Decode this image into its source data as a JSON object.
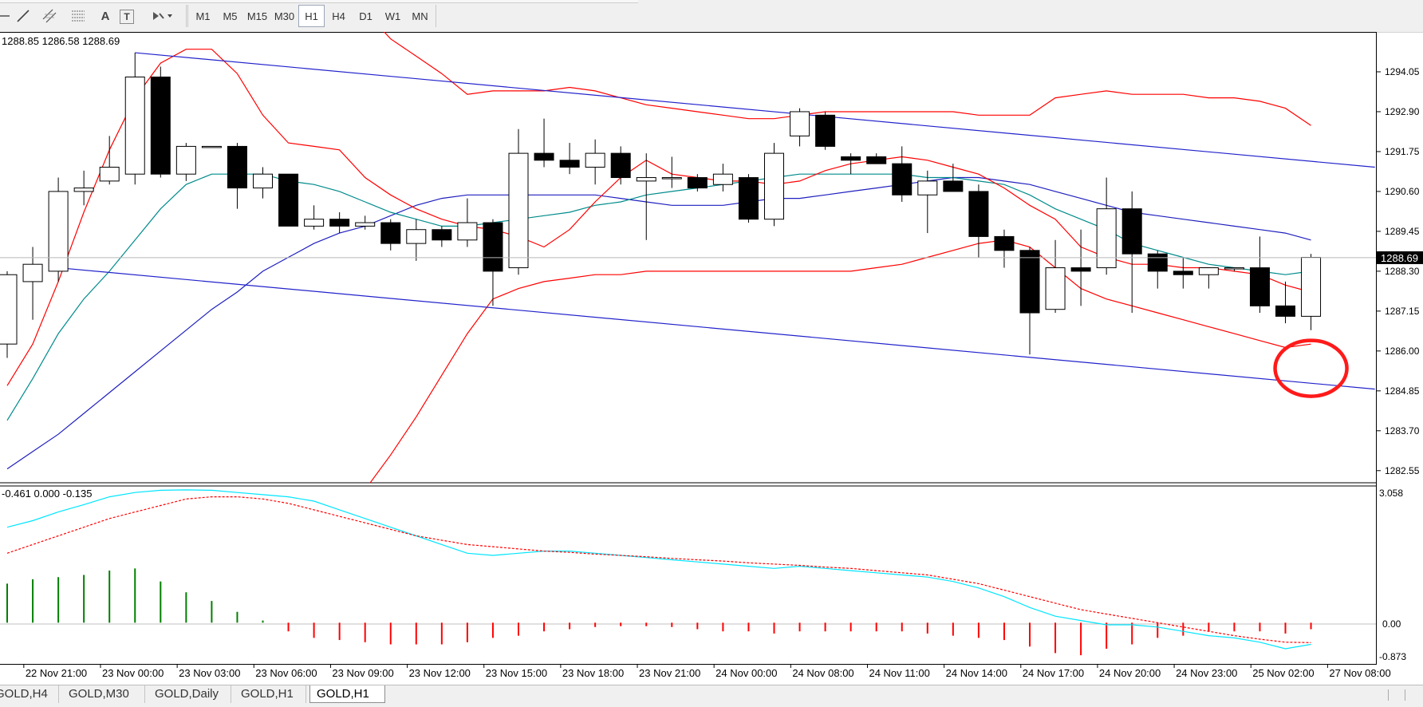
{
  "toolbar": {
    "tools": [
      {
        "name": "cursor-icon"
      },
      {
        "name": "trendline-icon"
      },
      {
        "name": "channel-icon"
      },
      {
        "name": "fibonacci-icon"
      },
      {
        "name": "text-tool-icon",
        "label": "A"
      },
      {
        "name": "text-label-icon",
        "label": "T"
      },
      {
        "name": "shapes-dropdown-icon"
      }
    ],
    "timeframes": [
      "M1",
      "M5",
      "M15",
      "M30",
      "H1",
      "H4",
      "D1",
      "W1",
      "MN"
    ],
    "active_timeframe": "H1"
  },
  "chart": {
    "ohlc_text": "1288.85 1286.58 1288.69",
    "current_price": "1288.69",
    "symbol": "GOLD",
    "timeframe": "H1",
    "annotation": "red circle around latest candle near lower channel line"
  },
  "indicator": {
    "values_text": "-0.461 0.000 -0.135",
    "scale_top": "3.058",
    "scale_zero": "0.00",
    "scale_bottom": "-0.873"
  },
  "chart_data": {
    "type": "candlestick",
    "price_axis": [
      "1294.05",
      "1292.90",
      "1291.75",
      "1290.60",
      "1289.45",
      "1288.30",
      "1287.15",
      "1286.00",
      "1284.85",
      "1283.70",
      "1282.55"
    ],
    "time_axis": [
      "22 Nov 21:00",
      "23 Nov 00:00",
      "23 Nov 03:00",
      "23 Nov 06:00",
      "23 Nov 09:00",
      "23 Nov 12:00",
      "23 Nov 15:00",
      "23 Nov 18:00",
      "23 Nov 21:00",
      "24 Nov 00:00",
      "24 Nov 08:00",
      "24 Nov 11:00",
      "24 Nov 14:00",
      "24 Nov 17:00",
      "24 Nov 20:00",
      "24 Nov 23:00",
      "25 Nov 02:00",
      "27 Nov 08:00"
    ],
    "candles": [
      {
        "o": 1286.2,
        "h": 1288.3,
        "l": 1285.8,
        "c": 1288.2
      },
      {
        "o": 1288.0,
        "h": 1289.0,
        "l": 1286.9,
        "c": 1288.5
      },
      {
        "o": 1288.3,
        "h": 1291.0,
        "l": 1288.0,
        "c": 1290.6
      },
      {
        "o": 1290.6,
        "h": 1291.2,
        "l": 1290.2,
        "c": 1290.7
      },
      {
        "o": 1290.9,
        "h": 1292.2,
        "l": 1290.8,
        "c": 1291.3
      },
      {
        "o": 1291.1,
        "h": 1294.6,
        "l": 1290.8,
        "c": 1293.9
      },
      {
        "o": 1293.9,
        "h": 1294.2,
        "l": 1291.0,
        "c": 1291.1
      },
      {
        "o": 1291.1,
        "h": 1292.0,
        "l": 1290.9,
        "c": 1291.9
      },
      {
        "o": 1291.9,
        "h": 1291.9,
        "l": 1291.9,
        "c": 1291.9
      },
      {
        "o": 1291.9,
        "h": 1292.0,
        "l": 1290.1,
        "c": 1290.7
      },
      {
        "o": 1290.7,
        "h": 1291.3,
        "l": 1290.4,
        "c": 1291.1
      },
      {
        "o": 1291.1,
        "h": 1291.1,
        "l": 1289.6,
        "c": 1289.6
      },
      {
        "o": 1289.6,
        "h": 1290.2,
        "l": 1289.5,
        "c": 1289.8
      },
      {
        "o": 1289.8,
        "h": 1290.0,
        "l": 1289.4,
        "c": 1289.6
      },
      {
        "o": 1289.6,
        "h": 1289.9,
        "l": 1289.5,
        "c": 1289.7
      },
      {
        "o": 1289.7,
        "h": 1289.8,
        "l": 1288.9,
        "c": 1289.1
      },
      {
        "o": 1289.1,
        "h": 1289.8,
        "l": 1288.6,
        "c": 1289.5
      },
      {
        "o": 1289.5,
        "h": 1289.6,
        "l": 1289.0,
        "c": 1289.2
      },
      {
        "o": 1289.2,
        "h": 1290.4,
        "l": 1289.0,
        "c": 1289.7
      },
      {
        "o": 1289.7,
        "h": 1289.8,
        "l": 1287.3,
        "c": 1288.3
      },
      {
        "o": 1288.4,
        "h": 1292.4,
        "l": 1288.2,
        "c": 1291.7
      },
      {
        "o": 1291.7,
        "h": 1292.7,
        "l": 1291.3,
        "c": 1291.5
      },
      {
        "o": 1291.5,
        "h": 1292.0,
        "l": 1291.1,
        "c": 1291.3
      },
      {
        "o": 1291.3,
        "h": 1292.1,
        "l": 1290.8,
        "c": 1291.7
      },
      {
        "o": 1291.7,
        "h": 1291.9,
        "l": 1290.8,
        "c": 1291.0
      },
      {
        "o": 1290.9,
        "h": 1291.7,
        "l": 1289.2,
        "c": 1291.0
      },
      {
        "o": 1291.0,
        "h": 1291.6,
        "l": 1290.7,
        "c": 1291.0
      },
      {
        "o": 1291.0,
        "h": 1291.1,
        "l": 1290.6,
        "c": 1290.7
      },
      {
        "o": 1290.8,
        "h": 1291.4,
        "l": 1290.6,
        "c": 1291.1
      },
      {
        "o": 1291.0,
        "h": 1291.1,
        "l": 1289.7,
        "c": 1289.8
      },
      {
        "o": 1289.8,
        "h": 1292.0,
        "l": 1289.6,
        "c": 1291.7
      },
      {
        "o": 1292.2,
        "h": 1293.0,
        "l": 1291.9,
        "c": 1292.9
      },
      {
        "o": 1292.8,
        "h": 1292.9,
        "l": 1291.8,
        "c": 1291.9
      },
      {
        "o": 1291.6,
        "h": 1291.7,
        "l": 1291.1,
        "c": 1291.5
      },
      {
        "o": 1291.6,
        "h": 1291.7,
        "l": 1291.4,
        "c": 1291.4
      },
      {
        "o": 1291.4,
        "h": 1291.9,
        "l": 1290.3,
        "c": 1290.5
      },
      {
        "o": 1290.5,
        "h": 1291.2,
        "l": 1289.4,
        "c": 1290.9
      },
      {
        "o": 1290.9,
        "h": 1291.4,
        "l": 1290.6,
        "c": 1290.6
      },
      {
        "o": 1290.6,
        "h": 1290.8,
        "l": 1288.7,
        "c": 1289.3
      },
      {
        "o": 1289.3,
        "h": 1289.5,
        "l": 1288.4,
        "c": 1288.9
      },
      {
        "o": 1288.9,
        "h": 1289.0,
        "l": 1285.9,
        "c": 1287.1
      },
      {
        "o": 1287.2,
        "h": 1289.2,
        "l": 1287.1,
        "c": 1288.4
      },
      {
        "o": 1288.4,
        "h": 1289.5,
        "l": 1287.3,
        "c": 1288.3
      },
      {
        "o": 1288.4,
        "h": 1291.0,
        "l": 1288.2,
        "c": 1290.1
      },
      {
        "o": 1290.1,
        "h": 1290.6,
        "l": 1287.1,
        "c": 1288.8
      },
      {
        "o": 1288.8,
        "h": 1288.9,
        "l": 1287.8,
        "c": 1288.3
      },
      {
        "o": 1288.3,
        "h": 1288.7,
        "l": 1287.8,
        "c": 1288.2
      },
      {
        "o": 1288.2,
        "h": 1288.4,
        "l": 1287.8,
        "c": 1288.4
      },
      {
        "o": 1288.4,
        "h": 1288.4,
        "l": 1288.3,
        "c": 1288.4
      },
      {
        "o": 1288.4,
        "h": 1289.3,
        "l": 1287.1,
        "c": 1287.3
      },
      {
        "o": 1287.3,
        "h": 1288.0,
        "l": 1286.8,
        "c": 1287.0
      },
      {
        "o": 1287.0,
        "h": 1288.8,
        "l": 1286.6,
        "c": 1288.7
      }
    ],
    "channel": {
      "upper": [
        {
          "bar": 5,
          "price": 1294.6
        },
        {
          "bar": 53.5,
          "price": 1291.3
        }
      ],
      "lower": [
        {
          "bar": 2,
          "price": 1288.4
        },
        {
          "bar": 53.5,
          "price": 1284.9
        }
      ]
    },
    "bollinger": {
      "upper": [
        1296.2,
        1296.6,
        1297.0,
        1297.4,
        1297.7,
        1297.9,
        1298.0,
        1298.0,
        1297.9,
        1297.8,
        1297.7,
        1297.5,
        1297.1,
        1296.6,
        1295.8,
        1295.0,
        1294.5,
        1294.0,
        1293.4,
        1293.5,
        1293.5,
        1293.5,
        1293.6,
        1293.5,
        1293.3,
        1293.1,
        1293.0,
        1292.9,
        1292.8,
        1292.7,
        1292.7,
        1292.8,
        1292.9,
        1292.9,
        1292.9,
        1292.9,
        1292.9,
        1292.9,
        1292.8,
        1292.8,
        1292.8,
        1293.3,
        1293.4,
        1293.5,
        1293.4,
        1293.4,
        1293.4,
        1293.3,
        1293.3,
        1293.2,
        1293.0,
        1292.5
      ],
      "lower": [
        1278.0,
        1277.8,
        1277.6,
        1277.5,
        1277.5,
        1277.6,
        1277.8,
        1278.0,
        1278.3,
        1278.6,
        1279.0,
        1279.5,
        1280.1,
        1281.0,
        1282.0,
        1283.0,
        1284.1,
        1285.3,
        1286.5,
        1287.5,
        1287.8,
        1288.0,
        1288.1,
        1288.2,
        1288.2,
        1288.3,
        1288.3,
        1288.3,
        1288.3,
        1288.3,
        1288.3,
        1288.3,
        1288.3,
        1288.3,
        1288.4,
        1288.5,
        1288.7,
        1288.9,
        1289.1,
        1289.2,
        1289.0,
        1288.4,
        1287.8,
        1287.5,
        1287.3,
        1287.1,
        1286.9,
        1286.7,
        1286.5,
        1286.3,
        1286.1,
        1286.2
      ]
    },
    "ma_red": [
      1285.0,
      1286.2,
      1288.0,
      1290.0,
      1291.8,
      1293.3,
      1294.3,
      1294.7,
      1294.7,
      1294.0,
      1292.8,
      1292.0,
      1291.9,
      1291.8,
      1291.0,
      1290.5,
      1290.1,
      1289.8,
      1289.6,
      1289.5,
      1289.3,
      1289.0,
      1289.5,
      1290.3,
      1291.0,
      1291.5,
      1291.1,
      1291.0,
      1290.9,
      1290.9,
      1290.8,
      1290.9,
      1291.2,
      1291.4,
      1291.5,
      1291.6,
      1291.5,
      1291.3,
      1291.1,
      1290.7,
      1290.2,
      1289.8,
      1289.0,
      1288.7,
      1288.5,
      1288.5,
      1288.4,
      1288.4,
      1288.3,
      1288.2,
      1287.9,
      1287.7
    ],
    "ma_teal": [
      1284.0,
      1285.2,
      1286.5,
      1287.5,
      1288.3,
      1289.2,
      1290.1,
      1290.8,
      1291.1,
      1291.1,
      1291.1,
      1290.9,
      1290.8,
      1290.6,
      1290.3,
      1290.0,
      1289.8,
      1289.6,
      1289.6,
      1289.7,
      1289.8,
      1289.9,
      1290.0,
      1290.2,
      1290.3,
      1290.5,
      1290.6,
      1290.7,
      1290.8,
      1290.9,
      1291.0,
      1291.1,
      1291.1,
      1291.1,
      1291.1,
      1291.1,
      1291.0,
      1291.0,
      1290.9,
      1290.8,
      1290.5,
      1290.1,
      1289.8,
      1289.5,
      1289.1,
      1288.9,
      1288.7,
      1288.5,
      1288.4,
      1288.3,
      1288.2,
      1288.3
    ],
    "ma_blue": [
      1282.6,
      1283.1,
      1283.6,
      1284.2,
      1284.8,
      1285.4,
      1286.0,
      1286.6,
      1287.2,
      1287.7,
      1288.3,
      1288.7,
      1289.1,
      1289.4,
      1289.6,
      1289.9,
      1290.2,
      1290.4,
      1290.5,
      1290.5,
      1290.5,
      1290.5,
      1290.5,
      1290.5,
      1290.4,
      1290.3,
      1290.2,
      1290.2,
      1290.2,
      1290.3,
      1290.4,
      1290.4,
      1290.5,
      1290.6,
      1290.7,
      1290.8,
      1290.9,
      1291.0,
      1291.0,
      1290.9,
      1290.8,
      1290.6,
      1290.4,
      1290.2,
      1290.0,
      1289.9,
      1289.8,
      1289.7,
      1289.6,
      1289.5,
      1289.4,
      1289.2
    ],
    "macd_line": [
      2.2,
      2.35,
      2.55,
      2.72,
      2.9,
      3.0,
      3.05,
      3.06,
      3.05,
      3.0,
      2.95,
      2.9,
      2.8,
      2.6,
      2.4,
      2.2,
      2.0,
      1.8,
      1.6,
      1.55,
      1.6,
      1.65,
      1.65,
      1.6,
      1.55,
      1.5,
      1.45,
      1.4,
      1.35,
      1.3,
      1.25,
      1.3,
      1.25,
      1.2,
      1.15,
      1.1,
      1.05,
      0.95,
      0.8,
      0.6,
      0.35,
      0.15,
      0.05,
      -0.05,
      -0.05,
      -0.1,
      -0.2,
      -0.3,
      -0.35,
      -0.45,
      -0.6,
      -0.5
    ],
    "macd_signal": [
      1.6,
      1.8,
      2.0,
      2.2,
      2.4,
      2.55,
      2.7,
      2.85,
      2.9,
      2.9,
      2.85,
      2.75,
      2.6,
      2.45,
      2.3,
      2.15,
      2.0,
      1.9,
      1.8,
      1.75,
      1.7,
      1.65,
      1.62,
      1.58,
      1.55,
      1.52,
      1.48,
      1.45,
      1.42,
      1.38,
      1.35,
      1.32,
      1.28,
      1.25,
      1.2,
      1.15,
      1.1,
      1.0,
      0.9,
      0.75,
      0.6,
      0.45,
      0.3,
      0.2,
      0.1,
      0.0,
      -0.1,
      -0.2,
      -0.3,
      -0.38,
      -0.45,
      -0.46
    ],
    "macd_hist": [
      0.9,
      1.0,
      1.05,
      1.1,
      1.2,
      1.25,
      0.95,
      0.7,
      0.5,
      0.25,
      0.05,
      -0.2,
      -0.35,
      -0.4,
      -0.45,
      -0.5,
      -0.5,
      -0.5,
      -0.45,
      -0.35,
      -0.3,
      -0.2,
      -0.15,
      -0.1,
      -0.08,
      -0.08,
      -0.1,
      -0.15,
      -0.2,
      -0.2,
      -0.25,
      -0.2,
      -0.2,
      -0.2,
      -0.2,
      -0.2,
      -0.25,
      -0.3,
      -0.35,
      -0.4,
      -0.55,
      -0.7,
      -0.75,
      -0.6,
      -0.5,
      -0.35,
      -0.3,
      -0.2,
      -0.2,
      -0.2,
      -0.25,
      -0.15
    ],
    "ylim": [
      1282.2,
      1295.2
    ],
    "macd_ylim": [
      -0.95,
      3.15
    ]
  },
  "colors": {
    "bull": "#ffffff",
    "bear": "#000000",
    "channel": "#2222cc",
    "bollinger": "#ff0000",
    "ma_red": "#ff0000",
    "ma_teal": "#008b8b",
    "ma_blue": "#1f1fbf",
    "macd_line": "#00e5ff",
    "macd_signal": "#ff0000",
    "hist_pos": "#008000",
    "hist_neg": "#ff0000",
    "annotation": "#ff1a1a"
  },
  "tabs": [
    {
      "label": "GOLD,H4"
    },
    {
      "label": "GOLD,M30"
    },
    {
      "label": "GOLD,Daily"
    },
    {
      "label": "GOLD,H1"
    },
    {
      "label": "GOLD,H1",
      "active": true
    }
  ]
}
